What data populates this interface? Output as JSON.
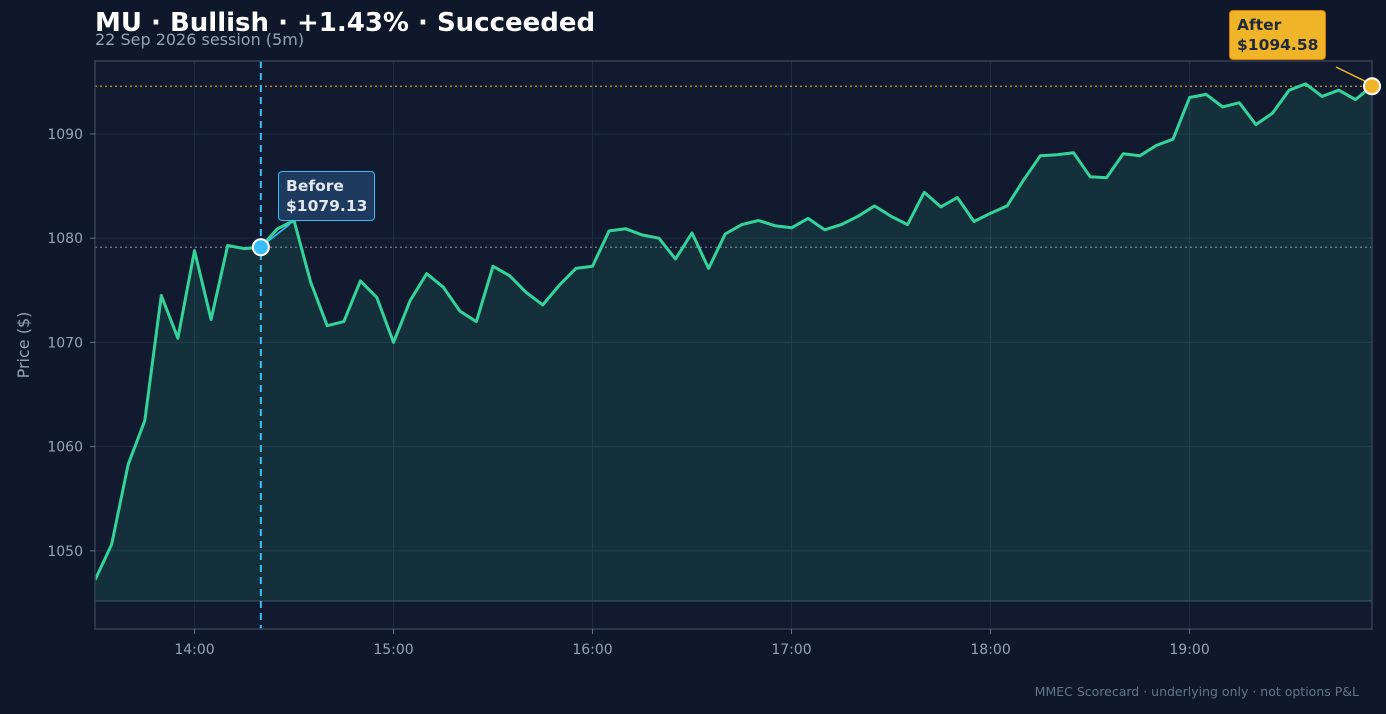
{
  "header": {
    "title": "MU · Bullish · +1.43% · Succeeded",
    "subtitle": "22 Sep 2026 session (5m)"
  },
  "footer": "MMEC Scorecard · underlying only · not options P&L",
  "annotations": {
    "before": {
      "label": "Before",
      "value": "$1079.13",
      "price": 1079.13,
      "time": "14:20"
    },
    "after": {
      "label": "After",
      "value": "$1094.58",
      "price": 1094.58,
      "time": "19:55"
    }
  },
  "colors": {
    "background": "#0f172a",
    "line": "#34d399",
    "before_marker": "#38bdf8",
    "after_marker": "#f0b429"
  },
  "chart_data": {
    "type": "area",
    "title": "MU · Bullish · +1.43% · Succeeded",
    "subtitle": "22 Sep 2026 session (5m)",
    "xlabel": "",
    "ylabel": "Price ($)",
    "x_ticks": [
      "14:00",
      "15:00",
      "16:00",
      "17:00",
      "18:00",
      "19:00"
    ],
    "y_ticks": [
      1050,
      1060,
      1070,
      1080,
      1090
    ],
    "xlim": [
      "13:30",
      "19:55"
    ],
    "ylim": [
      1042.5,
      1097
    ],
    "grid": true,
    "series": [
      {
        "x": [
          "13:30",
          "13:35",
          "13:40",
          "13:45",
          "13:50",
          "13:55",
          "14:00",
          "14:05",
          "14:10",
          "14:15",
          "14:20",
          "14:25",
          "14:30",
          "14:35",
          "14:40",
          "14:45",
          "14:50",
          "14:55",
          "15:00",
          "15:05",
          "15:10",
          "15:15",
          "15:20",
          "15:25",
          "15:30",
          "15:35",
          "15:40",
          "15:45",
          "15:50",
          "15:55",
          "16:00",
          "16:05",
          "16:10",
          "16:15",
          "16:20",
          "16:25",
          "16:30",
          "16:35",
          "16:40",
          "16:45",
          "16:50",
          "16:55",
          "17:00",
          "17:05",
          "17:10",
          "17:15",
          "17:20",
          "17:25",
          "17:30",
          "17:35",
          "17:40",
          "17:45",
          "17:50",
          "17:55",
          "18:00",
          "18:05",
          "18:10",
          "18:15",
          "18:20",
          "18:25",
          "18:30",
          "18:35",
          "18:40",
          "18:45",
          "18:50",
          "18:55",
          "19:00",
          "19:05",
          "19:10",
          "19:15",
          "19:20",
          "19:25",
          "19:30",
          "19:35",
          "19:40",
          "19:45",
          "19:50",
          "19:55"
        ],
        "values": [
          1047.2,
          1050.6,
          1058.3,
          1062.5,
          1074.5,
          1070.4,
          1078.8,
          1072.2,
          1079.3,
          1079.0,
          1079.13,
          1080.9,
          1081.7,
          1075.8,
          1071.6,
          1072.0,
          1075.9,
          1074.3,
          1070.0,
          1074.0,
          1076.6,
          1075.3,
          1073.0,
          1072.0,
          1077.3,
          1076.4,
          1074.8,
          1073.6,
          1075.5,
          1077.1,
          1077.3,
          1080.7,
          1080.9,
          1080.3,
          1080.0,
          1078.0,
          1080.5,
          1077.1,
          1080.4,
          1081.3,
          1081.7,
          1081.2,
          1081.0,
          1081.9,
          1080.8,
          1081.3,
          1082.1,
          1083.1,
          1082.1,
          1081.3,
          1084.4,
          1083.0,
          1083.9,
          1081.6,
          1082.4,
          1083.1,
          1085.6,
          1087.9,
          1088.0,
          1088.2,
          1085.9,
          1085.8,
          1088.1,
          1087.9,
          1088.9,
          1089.5,
          1093.5,
          1093.8,
          1092.6,
          1093.0,
          1090.9,
          1092.0,
          1094.2,
          1094.8,
          1093.6,
          1094.2,
          1093.3,
          1094.58
        ]
      }
    ]
  }
}
